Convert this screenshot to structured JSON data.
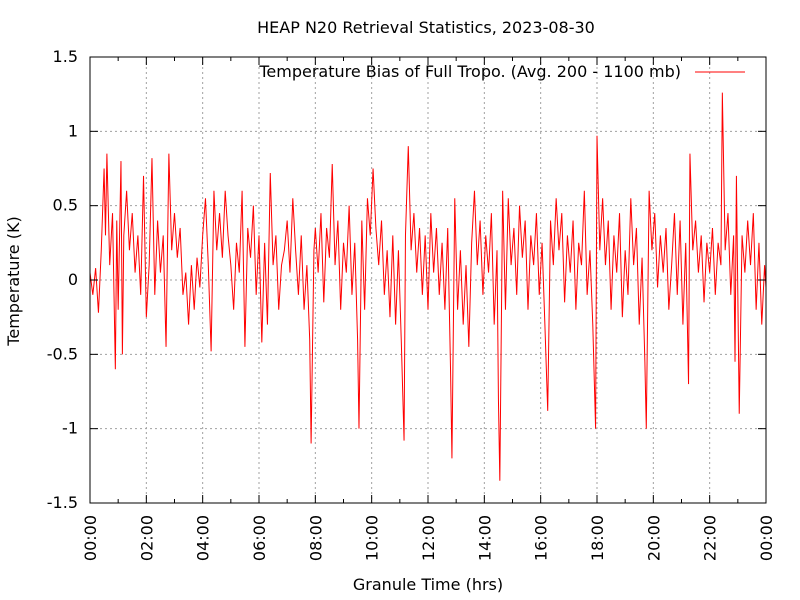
{
  "chart_data": {
    "type": "line",
    "title": "HEAP N20 Retrieval Statistics, 2023-08-30",
    "xlabel": "Granule Time (hrs)",
    "ylabel": "Temperature (K)",
    "x_unit": "hours",
    "xlim": [
      0,
      24
    ],
    "ylim": [
      -1.5,
      1.5
    ],
    "x_ticks": [
      0,
      2,
      4,
      6,
      8,
      10,
      12,
      14,
      16,
      18,
      20,
      22,
      24
    ],
    "x_tick_labels": [
      "00:00",
      "02:00",
      "04:00",
      "06:00",
      "08:00",
      "10:00",
      "12:00",
      "14:00",
      "16:00",
      "18:00",
      "20:00",
      "22:00",
      "00:00"
    ],
    "y_ticks": [
      -1.5,
      -1,
      -0.5,
      0,
      0.5,
      1,
      1.5
    ],
    "y_tick_labels": [
      "-1.5",
      "-1",
      "-0.5",
      "0",
      "0.5",
      "1",
      "1.5"
    ],
    "grid": true,
    "legend_position": "top-right",
    "series": [
      {
        "name": "Temperature Bias of Full Tropo. (Avg. 200 - 1100 mb)",
        "color": "#ff0000",
        "points": [
          [
            0.0,
            0.05
          ],
          [
            0.1,
            -0.1
          ],
          [
            0.2,
            0.08
          ],
          [
            0.3,
            -0.22
          ],
          [
            0.4,
            0.2
          ],
          [
            0.5,
            0.75
          ],
          [
            0.55,
            0.3
          ],
          [
            0.6,
            0.85
          ],
          [
            0.7,
            0.1
          ],
          [
            0.8,
            0.45
          ],
          [
            0.9,
            -0.6
          ],
          [
            0.95,
            0.4
          ],
          [
            1.0,
            -0.2
          ],
          [
            1.1,
            0.8
          ],
          [
            1.15,
            -0.5
          ],
          [
            1.2,
            0.3
          ],
          [
            1.3,
            0.6
          ],
          [
            1.4,
            0.2
          ],
          [
            1.5,
            0.45
          ],
          [
            1.6,
            0.05
          ],
          [
            1.7,
            0.3
          ],
          [
            1.8,
            -0.1
          ],
          [
            1.9,
            0.7
          ],
          [
            2.0,
            -0.25
          ],
          [
            2.1,
            0.1
          ],
          [
            2.2,
            0.82
          ],
          [
            2.3,
            -0.1
          ],
          [
            2.4,
            0.4
          ],
          [
            2.5,
            0.05
          ],
          [
            2.6,
            0.3
          ],
          [
            2.7,
            -0.45
          ],
          [
            2.8,
            0.85
          ],
          [
            2.9,
            0.2
          ],
          [
            3.0,
            0.45
          ],
          [
            3.1,
            0.15
          ],
          [
            3.2,
            0.35
          ],
          [
            3.3,
            -0.1
          ],
          [
            3.4,
            0.05
          ],
          [
            3.5,
            -0.3
          ],
          [
            3.6,
            0.1
          ],
          [
            3.7,
            -0.2
          ],
          [
            3.8,
            0.15
          ],
          [
            3.9,
            -0.05
          ],
          [
            4.0,
            0.3
          ],
          [
            4.1,
            0.55
          ],
          [
            4.2,
            0.1
          ],
          [
            4.3,
            -0.48
          ],
          [
            4.4,
            0.6
          ],
          [
            4.5,
            0.2
          ],
          [
            4.6,
            0.45
          ],
          [
            4.7,
            0.15
          ],
          [
            4.8,
            0.6
          ],
          [
            4.9,
            0.3
          ],
          [
            5.0,
            0.1
          ],
          [
            5.1,
            -0.2
          ],
          [
            5.2,
            0.25
          ],
          [
            5.3,
            0.05
          ],
          [
            5.4,
            0.6
          ],
          [
            5.5,
            -0.45
          ],
          [
            5.6,
            0.35
          ],
          [
            5.7,
            0.15
          ],
          [
            5.8,
            0.5
          ],
          [
            5.9,
            -0.1
          ],
          [
            6.0,
            0.3
          ],
          [
            6.1,
            -0.42
          ],
          [
            6.2,
            0.25
          ],
          [
            6.3,
            -0.3
          ],
          [
            6.4,
            0.72
          ],
          [
            6.5,
            0.1
          ],
          [
            6.6,
            0.3
          ],
          [
            6.7,
            -0.2
          ],
          [
            6.8,
            0.1
          ],
          [
            6.9,
            0.2
          ],
          [
            7.0,
            0.4
          ],
          [
            7.1,
            0.05
          ],
          [
            7.2,
            0.55
          ],
          [
            7.3,
            0.2
          ],
          [
            7.4,
            -0.1
          ],
          [
            7.5,
            0.3
          ],
          [
            7.6,
            -0.2
          ],
          [
            7.7,
            0.1
          ],
          [
            7.8,
            -0.4
          ],
          [
            7.85,
            -1.1
          ],
          [
            7.95,
            0.2
          ],
          [
            8.0,
            0.35
          ],
          [
            8.1,
            0.05
          ],
          [
            8.2,
            0.45
          ],
          [
            8.3,
            -0.15
          ],
          [
            8.4,
            0.35
          ],
          [
            8.5,
            0.15
          ],
          [
            8.6,
            0.78
          ],
          [
            8.7,
            0.1
          ],
          [
            8.8,
            0.4
          ],
          [
            8.9,
            -0.2
          ],
          [
            9.0,
            0.25
          ],
          [
            9.1,
            0.05
          ],
          [
            9.2,
            0.5
          ],
          [
            9.3,
            -0.1
          ],
          [
            9.4,
            0.25
          ],
          [
            9.5,
            -0.4
          ],
          [
            9.55,
            -1.0
          ],
          [
            9.65,
            0.4
          ],
          [
            9.75,
            -0.2
          ],
          [
            9.85,
            0.55
          ],
          [
            9.95,
            0.3
          ],
          [
            10.05,
            0.75
          ],
          [
            10.15,
            0.35
          ],
          [
            10.25,
            0.1
          ],
          [
            10.35,
            0.4
          ],
          [
            10.45,
            -0.1
          ],
          [
            10.55,
            0.2
          ],
          [
            10.65,
            -0.25
          ],
          [
            10.75,
            0.3
          ],
          [
            10.85,
            -0.3
          ],
          [
            10.95,
            0.2
          ],
          [
            11.05,
            -0.4
          ],
          [
            11.15,
            -1.08
          ],
          [
            11.2,
            0.3
          ],
          [
            11.3,
            0.9
          ],
          [
            11.4,
            0.2
          ],
          [
            11.5,
            0.45
          ],
          [
            11.6,
            0.05
          ],
          [
            11.7,
            0.35
          ],
          [
            11.8,
            -0.1
          ],
          [
            11.9,
            0.3
          ],
          [
            12.0,
            -0.2
          ],
          [
            12.1,
            0.45
          ],
          [
            12.2,
            0.05
          ],
          [
            12.3,
            0.35
          ],
          [
            12.4,
            -0.1
          ],
          [
            12.5,
            0.25
          ],
          [
            12.6,
            -0.2
          ],
          [
            12.7,
            0.35
          ],
          [
            12.8,
            -0.6
          ],
          [
            12.85,
            -1.2
          ],
          [
            12.95,
            0.55
          ],
          [
            13.05,
            -0.2
          ],
          [
            13.15,
            0.2
          ],
          [
            13.25,
            -0.3
          ],
          [
            13.35,
            0.1
          ],
          [
            13.45,
            -0.45
          ],
          [
            13.55,
            0.25
          ],
          [
            13.65,
            0.6
          ],
          [
            13.75,
            0.1
          ],
          [
            13.85,
            0.4
          ],
          [
            13.95,
            -0.1
          ],
          [
            14.05,
            0.3
          ],
          [
            14.15,
            0.05
          ],
          [
            14.25,
            0.45
          ],
          [
            14.35,
            -0.3
          ],
          [
            14.45,
            0.2
          ],
          [
            14.5,
            -0.8
          ],
          [
            14.55,
            -1.35
          ],
          [
            14.65,
            0.6
          ],
          [
            14.75,
            -0.2
          ],
          [
            14.85,
            0.55
          ],
          [
            14.95,
            0.1
          ],
          [
            15.05,
            0.35
          ],
          [
            15.15,
            -0.1
          ],
          [
            15.25,
            0.5
          ],
          [
            15.35,
            0.15
          ],
          [
            15.45,
            0.4
          ],
          [
            15.55,
            -0.2
          ],
          [
            15.65,
            0.3
          ],
          [
            15.75,
            0.1
          ],
          [
            15.85,
            0.45
          ],
          [
            15.95,
            -0.1
          ],
          [
            16.05,
            0.25
          ],
          [
            16.15,
            -0.3
          ],
          [
            16.25,
            -0.88
          ],
          [
            16.35,
            0.4
          ],
          [
            16.45,
            0.1
          ],
          [
            16.55,
            0.55
          ],
          [
            16.65,
            0.2
          ],
          [
            16.75,
            0.45
          ],
          [
            16.85,
            -0.15
          ],
          [
            16.95,
            0.3
          ],
          [
            17.05,
            0.05
          ],
          [
            17.15,
            0.4
          ],
          [
            17.25,
            -0.2
          ],
          [
            17.35,
            0.25
          ],
          [
            17.45,
            0.1
          ],
          [
            17.55,
            0.6
          ],
          [
            17.65,
            -0.1
          ],
          [
            17.75,
            0.2
          ],
          [
            17.85,
            -0.3
          ],
          [
            17.95,
            -1.0
          ],
          [
            18.0,
            0.97
          ],
          [
            18.1,
            0.2
          ],
          [
            18.2,
            0.55
          ],
          [
            18.3,
            0.1
          ],
          [
            18.4,
            0.4
          ],
          [
            18.5,
            -0.2
          ],
          [
            18.6,
            0.3
          ],
          [
            18.7,
            0.05
          ],
          [
            18.8,
            0.45
          ],
          [
            18.9,
            -0.25
          ],
          [
            19.0,
            0.2
          ],
          [
            19.1,
            -0.1
          ],
          [
            19.2,
            0.55
          ],
          [
            19.3,
            0.1
          ],
          [
            19.4,
            0.35
          ],
          [
            19.5,
            -0.3
          ],
          [
            19.6,
            0.15
          ],
          [
            19.7,
            -0.55
          ],
          [
            19.75,
            -1.0
          ],
          [
            19.85,
            0.6
          ],
          [
            19.95,
            0.2
          ],
          [
            20.05,
            0.45
          ],
          [
            20.15,
            -0.05
          ],
          [
            20.25,
            0.3
          ],
          [
            20.35,
            0.05
          ],
          [
            20.45,
            0.35
          ],
          [
            20.55,
            -0.2
          ],
          [
            20.65,
            0.1
          ],
          [
            20.75,
            0.45
          ],
          [
            20.85,
            -0.1
          ],
          [
            20.95,
            0.4
          ],
          [
            21.05,
            -0.3
          ],
          [
            21.15,
            0.25
          ],
          [
            21.25,
            -0.7
          ],
          [
            21.3,
            0.85
          ],
          [
            21.4,
            0.2
          ],
          [
            21.5,
            0.4
          ],
          [
            21.6,
            0.05
          ],
          [
            21.7,
            0.3
          ],
          [
            21.8,
            -0.15
          ],
          [
            21.9,
            0.25
          ],
          [
            22.0,
            0.05
          ],
          [
            22.1,
            0.35
          ],
          [
            22.2,
            -0.1
          ],
          [
            22.3,
            0.25
          ],
          [
            22.4,
            0.1
          ],
          [
            22.45,
            1.26
          ],
          [
            22.55,
            0.2
          ],
          [
            22.65,
            0.45
          ],
          [
            22.75,
            -0.1
          ],
          [
            22.85,
            0.3
          ],
          [
            22.9,
            -0.55
          ],
          [
            22.95,
            0.7
          ],
          [
            23.05,
            -0.9
          ],
          [
            23.15,
            0.3
          ],
          [
            23.25,
            0.05
          ],
          [
            23.35,
            0.4
          ],
          [
            23.45,
            0.1
          ],
          [
            23.55,
            0.45
          ],
          [
            23.65,
            -0.2
          ],
          [
            23.75,
            0.25
          ],
          [
            23.85,
            -0.3
          ],
          [
            23.95,
            0.1
          ],
          [
            24.0,
            -0.05
          ]
        ]
      }
    ]
  }
}
